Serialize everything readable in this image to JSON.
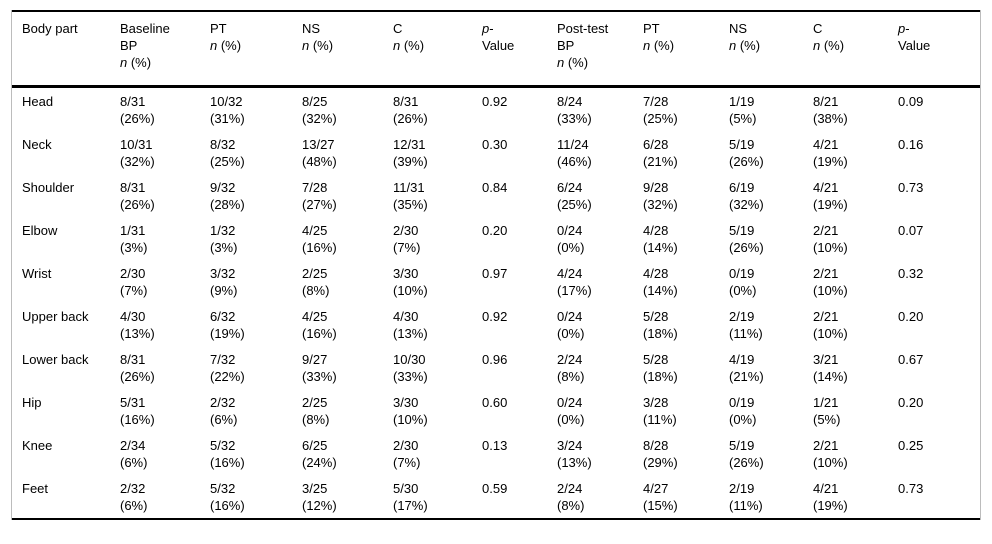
{
  "table": {
    "header": {
      "columns": [
        {
          "id": "body-part",
          "lines": [
            "Body part"
          ]
        },
        {
          "id": "baseline-bp",
          "lines": [
            "Baseline",
            "BP",
            "n (%)"
          ]
        },
        {
          "id": "baseline-pt",
          "lines": [
            "PT",
            "n (%)"
          ]
        },
        {
          "id": "baseline-ns",
          "lines": [
            "NS",
            "n (%)"
          ]
        },
        {
          "id": "baseline-c",
          "lines": [
            "C",
            "n (%)"
          ]
        },
        {
          "id": "baseline-p",
          "lines": [
            "p-",
            "Value"
          ]
        },
        {
          "id": "posttest-bp",
          "lines": [
            "Post-test",
            "BP",
            "n (%)"
          ]
        },
        {
          "id": "posttest-pt",
          "lines": [
            "PT",
            "n (%)"
          ]
        },
        {
          "id": "posttest-ns",
          "lines": [
            "NS",
            "n (%)"
          ]
        },
        {
          "id": "posttest-c",
          "lines": [
            "C",
            "n (%)"
          ]
        },
        {
          "id": "posttest-p",
          "lines": [
            "p-",
            "Value"
          ]
        }
      ]
    },
    "rows": [
      {
        "body_part": "Head",
        "baseline": [
          {
            "frac": "8/31",
            "pct": "(26%)"
          },
          {
            "frac": "10/32",
            "pct": "(31%)"
          },
          {
            "frac": "8/25",
            "pct": "(32%)"
          },
          {
            "frac": "8/31",
            "pct": "(26%)"
          }
        ],
        "baseline_p": "0.92",
        "post": [
          {
            "frac": "8/24",
            "pct": "(33%)"
          },
          {
            "frac": "7/28",
            "pct": "(25%)"
          },
          {
            "frac": "1/19",
            "pct": "(5%)"
          },
          {
            "frac": "8/21",
            "pct": "(38%)"
          }
        ],
        "post_p": "0.09"
      },
      {
        "body_part": "Neck",
        "baseline": [
          {
            "frac": "10/31",
            "pct": "(32%)"
          },
          {
            "frac": "8/32",
            "pct": "(25%)"
          },
          {
            "frac": "13/27",
            "pct": "(48%)"
          },
          {
            "frac": "12/31",
            "pct": "(39%)"
          }
        ],
        "baseline_p": "0.30",
        "post": [
          {
            "frac": "11/24",
            "pct": "(46%)"
          },
          {
            "frac": "6/28",
            "pct": "(21%)"
          },
          {
            "frac": "5/19",
            "pct": "(26%)"
          },
          {
            "frac": "4/21",
            "pct": "(19%)"
          }
        ],
        "post_p": "0.16"
      },
      {
        "body_part": "Shoulder",
        "baseline": [
          {
            "frac": "8/31",
            "pct": "(26%)"
          },
          {
            "frac": "9/32",
            "pct": "(28%)"
          },
          {
            "frac": "7/28",
            "pct": "(27%)"
          },
          {
            "frac": "11/31",
            "pct": "(35%)"
          }
        ],
        "baseline_p": "0.84",
        "post": [
          {
            "frac": "6/24",
            "pct": "(25%)"
          },
          {
            "frac": "9/28",
            "pct": "(32%)"
          },
          {
            "frac": "6/19",
            "pct": "(32%)"
          },
          {
            "frac": "4/21",
            "pct": "(19%)"
          }
        ],
        "post_p": "0.73"
      },
      {
        "body_part": "Elbow",
        "baseline": [
          {
            "frac": "1/31",
            "pct": "(3%)"
          },
          {
            "frac": "1/32",
            "pct": "(3%)"
          },
          {
            "frac": "4/25",
            "pct": "(16%)"
          },
          {
            "frac": "2/30",
            "pct": "(7%)"
          }
        ],
        "baseline_p": "0.20",
        "post": [
          {
            "frac": "0/24",
            "pct": "(0%)"
          },
          {
            "frac": "4/28",
            "pct": "(14%)"
          },
          {
            "frac": "5/19",
            "pct": "(26%)"
          },
          {
            "frac": "2/21",
            "pct": "(10%)"
          }
        ],
        "post_p": "0.07"
      },
      {
        "body_part": "Wrist",
        "baseline": [
          {
            "frac": "2/30",
            "pct": "(7%)"
          },
          {
            "frac": "3/32",
            "pct": "(9%)"
          },
          {
            "frac": "2/25",
            "pct": "(8%)"
          },
          {
            "frac": "3/30",
            "pct": "(10%)"
          }
        ],
        "baseline_p": "0.97",
        "post": [
          {
            "frac": "4/24",
            "pct": "(17%)"
          },
          {
            "frac": "4/28",
            "pct": "(14%)"
          },
          {
            "frac": "0/19",
            "pct": "(0%)"
          },
          {
            "frac": "2/21",
            "pct": "(10%)"
          }
        ],
        "post_p": "0.32"
      },
      {
        "body_part": "Upper back",
        "baseline": [
          {
            "frac": "4/30",
            "pct": "(13%)"
          },
          {
            "frac": "6/32",
            "pct": "(19%)"
          },
          {
            "frac": "4/25",
            "pct": "(16%)"
          },
          {
            "frac": "4/30",
            "pct": "(13%)"
          }
        ],
        "baseline_p": "0.92",
        "post": [
          {
            "frac": "0/24",
            "pct": "(0%)"
          },
          {
            "frac": "5/28",
            "pct": "(18%)"
          },
          {
            "frac": "2/19",
            "pct": "(11%)"
          },
          {
            "frac": "2/21",
            "pct": "(10%)"
          }
        ],
        "post_p": "0.20"
      },
      {
        "body_part": "Lower back",
        "baseline": [
          {
            "frac": "8/31",
            "pct": "(26%)"
          },
          {
            "frac": "7/32",
            "pct": "(22%)"
          },
          {
            "frac": "9/27",
            "pct": "(33%)"
          },
          {
            "frac": "10/30",
            "pct": "(33%)"
          }
        ],
        "baseline_p": "0.96",
        "post": [
          {
            "frac": "2/24",
            "pct": "(8%)"
          },
          {
            "frac": "5/28",
            "pct": "(18%)"
          },
          {
            "frac": "4/19",
            "pct": "(21%)"
          },
          {
            "frac": "3/21",
            "pct": "(14%)"
          }
        ],
        "post_p": "0.67"
      },
      {
        "body_part": "Hip",
        "baseline": [
          {
            "frac": "5/31",
            "pct": "(16%)"
          },
          {
            "frac": "2/32",
            "pct": "(6%)"
          },
          {
            "frac": "2/25",
            "pct": "(8%)"
          },
          {
            "frac": "3/30",
            "pct": "(10%)"
          }
        ],
        "baseline_p": "0.60",
        "post": [
          {
            "frac": "0/24",
            "pct": "(0%)"
          },
          {
            "frac": "3/28",
            "pct": "(11%)"
          },
          {
            "frac": "0/19",
            "pct": "(0%)"
          },
          {
            "frac": "1/21",
            "pct": "(5%)"
          }
        ],
        "post_p": "0.20"
      },
      {
        "body_part": "Knee",
        "baseline": [
          {
            "frac": "2/34",
            "pct": "(6%)"
          },
          {
            "frac": "5/32",
            "pct": "(16%)"
          },
          {
            "frac": "6/25",
            "pct": "(24%)"
          },
          {
            "frac": "2/30",
            "pct": "(7%)"
          }
        ],
        "baseline_p": "0.13",
        "post": [
          {
            "frac": "3/24",
            "pct": "(13%)"
          },
          {
            "frac": "8/28",
            "pct": "(29%)"
          },
          {
            "frac": "5/19",
            "pct": "(26%)"
          },
          {
            "frac": "2/21",
            "pct": "(10%)"
          }
        ],
        "post_p": "0.25"
      },
      {
        "body_part": "Feet",
        "baseline": [
          {
            "frac": "2/32",
            "pct": "(6%)"
          },
          {
            "frac": "5/32",
            "pct": "(16%)"
          },
          {
            "frac": "3/25",
            "pct": "(12%)"
          },
          {
            "frac": "5/30",
            "pct": "(17%)"
          }
        ],
        "baseline_p": "0.59",
        "post": [
          {
            "frac": "2/24",
            "pct": "(8%)"
          },
          {
            "frac": "4/27",
            "pct": "(15%)"
          },
          {
            "frac": "2/19",
            "pct": "(11%)"
          },
          {
            "frac": "4/21",
            "pct": "(19%)"
          }
        ],
        "post_p": "0.73"
      }
    ],
    "colors": {
      "text": "#000000",
      "rule": "#000000",
      "outer_border": "#bcbcbc",
      "background": "#ffffff"
    }
  }
}
